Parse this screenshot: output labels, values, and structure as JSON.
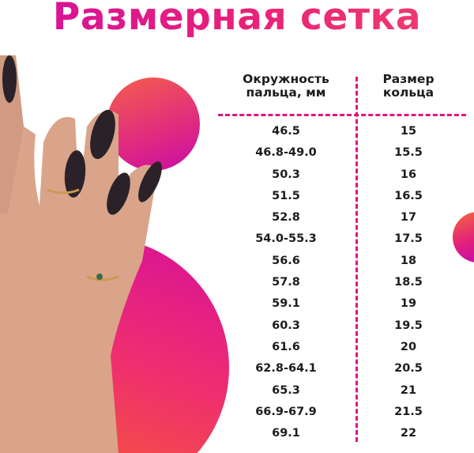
{
  "title": "Размерная сетка",
  "colors": {
    "accent": "#e0157f",
    "gradient_start": "#d4109e",
    "gradient_end": "#f5553c"
  },
  "image": "hand-with-rings-photo",
  "table": {
    "headers": [
      "Окружность пальца, мм",
      "Размер кольца"
    ],
    "header_lines": [
      [
        "Окружность",
        "пальца, мм"
      ],
      [
        "Размер",
        "кольца"
      ]
    ],
    "rows": [
      [
        "46.5",
        "15"
      ],
      [
        "46.8-49.0",
        "15.5"
      ],
      [
        "50.3",
        "16"
      ],
      [
        "51.5",
        "16.5"
      ],
      [
        "52.8",
        "17"
      ],
      [
        "54.0-55.3",
        "17.5"
      ],
      [
        "56.6",
        "18"
      ],
      [
        "57.8",
        "18.5"
      ],
      [
        "59.1",
        "19"
      ],
      [
        "60.3",
        "19.5"
      ],
      [
        "61.6",
        "20"
      ],
      [
        "62.8-64.1",
        "20.5"
      ],
      [
        "65.3",
        "21"
      ],
      [
        "66.9-67.9",
        "21.5"
      ],
      [
        "69.1",
        "22"
      ]
    ]
  }
}
